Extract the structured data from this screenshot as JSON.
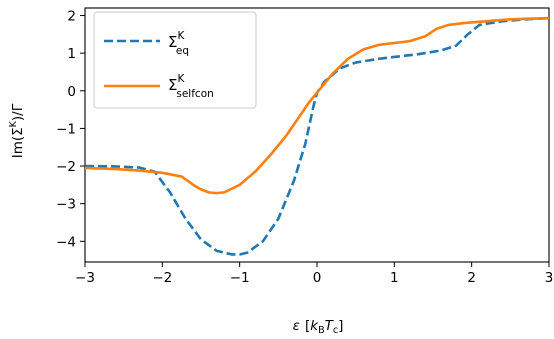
{
  "chart_data": {
    "type": "line",
    "xlabel": {
      "sym": "ε",
      "open": "[",
      "k": "k",
      "k_sub": "B",
      "t": "T",
      "t_sub": "c",
      "close": "]"
    },
    "ylabel": {
      "prefix": "Im(Σ",
      "sup": "K",
      "suffix": ")/Γ"
    },
    "xlim": [
      -3,
      3
    ],
    "ylim": [
      -4.55,
      2.2
    ],
    "xticks": [
      -3,
      -2,
      -1,
      0,
      1,
      2,
      3
    ],
    "yticks": [
      -4,
      -3,
      -2,
      -1,
      0,
      1,
      2
    ],
    "xtick_labels": [
      "−3",
      "−2",
      "−1",
      "0",
      "1",
      "2",
      "3"
    ],
    "ytick_labels": [
      "−4",
      "−3",
      "−2",
      "−1",
      "0",
      "1",
      "2"
    ],
    "grid": false,
    "legend_position": "upper-left",
    "series": [
      {
        "name": {
          "sym": "Σ",
          "sup": "K",
          "sub": "eq"
        },
        "color": "#1f77b4",
        "style": "dashed",
        "x": [
          -3.0,
          -2.6,
          -2.3,
          -2.1,
          -1.9,
          -1.7,
          -1.5,
          -1.3,
          -1.1,
          -1.0,
          -0.9,
          -0.7,
          -0.5,
          -0.3,
          -0.15,
          -0.05,
          0.0,
          0.1,
          0.3,
          0.5,
          0.8,
          1.0,
          1.3,
          1.6,
          1.8,
          1.95,
          2.1,
          2.4,
          2.7,
          3.0
        ],
        "y": [
          -2.0,
          -2.01,
          -2.04,
          -2.15,
          -2.7,
          -3.4,
          -3.95,
          -4.25,
          -4.35,
          -4.35,
          -4.3,
          -4.0,
          -3.4,
          -2.4,
          -1.4,
          -0.45,
          -0.05,
          0.25,
          0.6,
          0.75,
          0.85,
          0.9,
          0.97,
          1.07,
          1.2,
          1.5,
          1.75,
          1.85,
          1.9,
          1.93
        ]
      },
      {
        "name": {
          "sym": "Σ",
          "sup": "K",
          "sub": "selfcon"
        },
        "color": "#ff7f0e",
        "style": "solid",
        "x": [
          -3.0,
          -2.6,
          -2.3,
          -2.0,
          -1.75,
          -1.6,
          -1.5,
          -1.4,
          -1.3,
          -1.2,
          -1.0,
          -0.8,
          -0.6,
          -0.4,
          -0.2,
          -0.1,
          0.0,
          0.2,
          0.4,
          0.6,
          0.8,
          1.0,
          1.2,
          1.4,
          1.55,
          1.7,
          1.9,
          2.2,
          2.5,
          2.8,
          3.0
        ],
        "y": [
          -2.05,
          -2.08,
          -2.12,
          -2.18,
          -2.28,
          -2.5,
          -2.62,
          -2.7,
          -2.72,
          -2.7,
          -2.5,
          -2.15,
          -1.7,
          -1.2,
          -0.6,
          -0.3,
          -0.05,
          0.45,
          0.85,
          1.1,
          1.22,
          1.27,
          1.32,
          1.45,
          1.65,
          1.75,
          1.8,
          1.85,
          1.9,
          1.92,
          1.93
        ]
      }
    ]
  }
}
